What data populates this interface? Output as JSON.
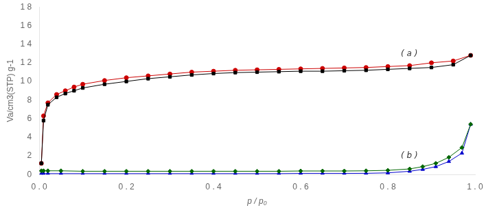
{
  "chart_data": {
    "type": "line",
    "title": "",
    "xlabel": "p / p₀",
    "ylabel": "Va/cm3(STP) g-1",
    "xlim": [
      0,
      1.0
    ],
    "ylim": [
      0,
      18
    ],
    "xticks": [
      {
        "value": 0.0,
        "label": "0 . 0"
      },
      {
        "value": 0.2,
        "label": "0 . 2"
      },
      {
        "value": 0.4,
        "label": "0 . 4"
      },
      {
        "value": 0.6,
        "label": "0 . 6"
      },
      {
        "value": 0.8,
        "label": "0 . 8"
      },
      {
        "value": 1.0,
        "label": "1 . 0"
      }
    ],
    "yticks": [
      0,
      2,
      4,
      6,
      8,
      {
        "value": 10,
        "label": "1 0"
      },
      {
        "value": 12,
        "label": "1 2"
      },
      {
        "value": 14,
        "label": "1 4"
      },
      {
        "value": 16,
        "label": "1 6"
      },
      {
        "value": 18,
        "label": "1 8"
      }
    ],
    "grid": false,
    "annotations": [
      {
        "text": "( a )",
        "x": 0.83,
        "y": 12.5
      },
      {
        "text": "( b )",
        "x": 0.83,
        "y": 1.6
      }
    ],
    "series": [
      {
        "color": "#000000",
        "marker": "square",
        "line_style": "solid",
        "x": [
          0.005,
          0.01,
          0.02,
          0.04,
          0.06,
          0.08,
          0.1,
          0.15,
          0.2,
          0.25,
          0.3,
          0.35,
          0.4,
          0.45,
          0.5,
          0.55,
          0.6,
          0.65,
          0.7,
          0.75,
          0.8,
          0.85,
          0.9,
          0.95,
          0.99
        ],
        "values": [
          1.2,
          5.8,
          7.5,
          8.3,
          8.7,
          9.0,
          9.3,
          9.7,
          10.0,
          10.3,
          10.5,
          10.7,
          10.85,
          10.95,
          11.0,
          11.05,
          11.1,
          11.1,
          11.15,
          11.2,
          11.3,
          11.4,
          11.5,
          11.8,
          12.8
        ]
      },
      {
        "color": "#cc0000",
        "marker": "circle",
        "line_style": "solid",
        "x": [
          0.005,
          0.01,
          0.02,
          0.04,
          0.06,
          0.08,
          0.1,
          0.15,
          0.2,
          0.25,
          0.3,
          0.35,
          0.4,
          0.45,
          0.5,
          0.55,
          0.6,
          0.65,
          0.7,
          0.75,
          0.8,
          0.85,
          0.9,
          0.95,
          0.99
        ],
        "values": [
          1.2,
          6.3,
          7.7,
          8.6,
          9.0,
          9.4,
          9.7,
          10.1,
          10.4,
          10.6,
          10.8,
          11.0,
          11.1,
          11.2,
          11.25,
          11.3,
          11.35,
          11.4,
          11.45,
          11.5,
          11.6,
          11.7,
          12.0,
          12.2,
          12.8
        ]
      },
      {
        "color": "#006600",
        "marker": "diamond",
        "line_style": "solid",
        "x": [
          0.005,
          0.01,
          0.02,
          0.05,
          0.1,
          0.15,
          0.2,
          0.25,
          0.3,
          0.35,
          0.4,
          0.45,
          0.5,
          0.55,
          0.6,
          0.65,
          0.7,
          0.75,
          0.8,
          0.85,
          0.88,
          0.91,
          0.94,
          0.97,
          0.99
        ],
        "values": [
          0.4,
          0.4,
          0.4,
          0.4,
          0.35,
          0.35,
          0.35,
          0.35,
          0.35,
          0.35,
          0.35,
          0.35,
          0.35,
          0.35,
          0.38,
          0.38,
          0.38,
          0.4,
          0.45,
          0.6,
          0.85,
          1.2,
          1.85,
          2.9,
          5.4
        ]
      },
      {
        "color": "#0000cc",
        "marker": "triangle",
        "line_style": "solid",
        "x": [
          0.005,
          0.01,
          0.02,
          0.05,
          0.1,
          0.15,
          0.2,
          0.25,
          0.3,
          0.35,
          0.4,
          0.45,
          0.5,
          0.55,
          0.6,
          0.65,
          0.7,
          0.75,
          0.8,
          0.85,
          0.88,
          0.91,
          0.94,
          0.97,
          0.99
        ],
        "values": [
          0.1,
          0.1,
          0.1,
          0.1,
          0.1,
          0.1,
          0.1,
          0.1,
          0.1,
          0.1,
          0.1,
          0.1,
          0.1,
          0.1,
          0.12,
          0.12,
          0.12,
          0.13,
          0.18,
          0.35,
          0.55,
          0.85,
          1.4,
          2.3,
          5.4
        ]
      }
    ]
  }
}
